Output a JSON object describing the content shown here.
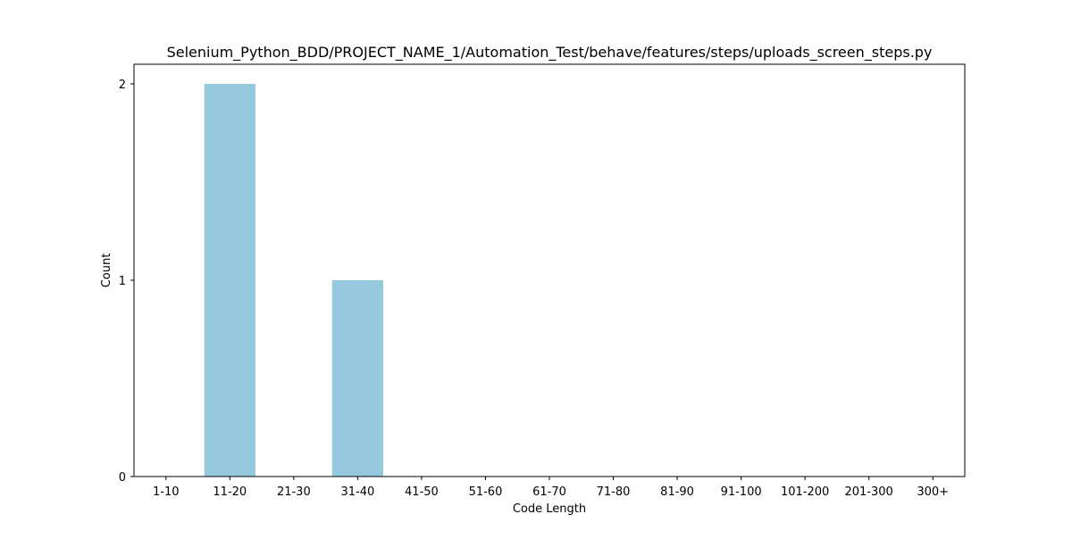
{
  "chart_data": {
    "type": "bar",
    "title": "Selenium_Python_BDD/PROJECT_NAME_1/Automation_Test/behave/features/steps/uploads_screen_steps.py",
    "xlabel": "Code Length",
    "ylabel": "Count",
    "categories": [
      "1-10",
      "11-20",
      "21-30",
      "31-40",
      "41-50",
      "51-60",
      "61-70",
      "71-80",
      "81-90",
      "91-100",
      "101-200",
      "201-300",
      "300+"
    ],
    "values": [
      0,
      2,
      0,
      1,
      0,
      0,
      0,
      0,
      0,
      0,
      0,
      0,
      0
    ],
    "yticks": [
      "0",
      "1",
      "2"
    ],
    "ylim": [
      0,
      2.1
    ],
    "grid": false,
    "bar_color": "#96c9de"
  }
}
